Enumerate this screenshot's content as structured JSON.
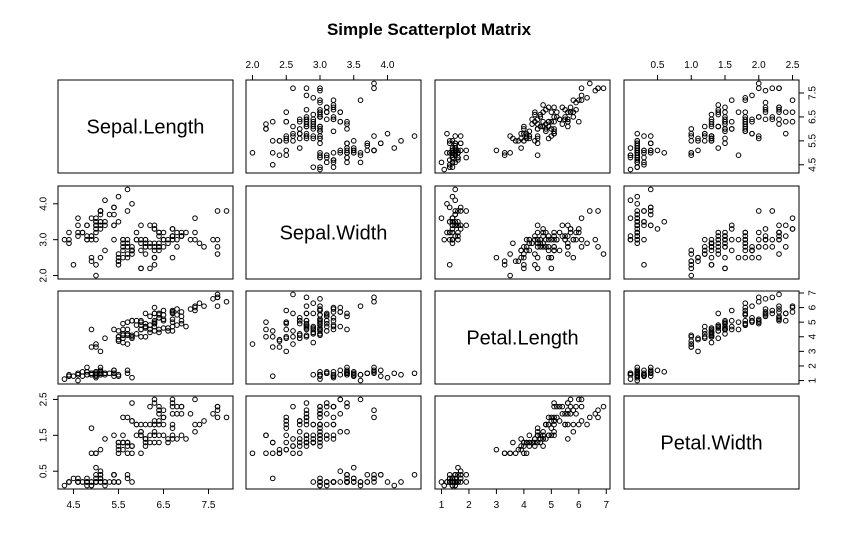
{
  "chart_data": {
    "type": "scatter",
    "subtype": "scatterplot-matrix",
    "title": "Simple Scatterplot Matrix",
    "variables": [
      "Sepal.Length",
      "Sepal.Width",
      "Petal.Length",
      "Petal.Width"
    ],
    "ranges": {
      "Sepal.Length": [
        4.3,
        7.9
      ],
      "Sepal.Width": [
        2.0,
        4.4
      ],
      "Petal.Length": [
        1.0,
        6.9
      ],
      "Petal.Width": [
        0.1,
        2.5
      ]
    },
    "ticks": {
      "Sepal.Length": {
        "values": [
          4.5,
          5.5,
          6.5,
          7.5
        ],
        "labels": [
          "4.5",
          "5.5",
          "6.5",
          "7.5"
        ]
      },
      "Sepal.Width": {
        "values": [
          2.0,
          2.5,
          3.0,
          3.5,
          4.0
        ],
        "labels": [
          "2.0",
          "2.5",
          "3.0",
          "3.5",
          "4.0"
        ]
      },
      "Sepal.Width.left": {
        "values": [
          2.0,
          3.0,
          4.0
        ],
        "labels": [
          "2.0",
          "3.0",
          "4.0"
        ]
      },
      "Petal.Length": {
        "values": [
          1,
          2,
          3,
          4,
          5,
          6,
          7
        ],
        "labels": [
          "1",
          "2",
          "3",
          "4",
          "5",
          "6",
          "7"
        ]
      },
      "Petal.Width": {
        "values": [
          0.5,
          1.0,
          1.5,
          2.0,
          2.5
        ],
        "labels": [
          "0.5",
          "1.0",
          "1.5",
          "2.0",
          "2.5"
        ]
      },
      "Petal.Width.left": {
        "values": [
          0.5,
          1.5,
          2.5
        ],
        "labels": [
          "0.5",
          "1.5",
          "2.5"
        ]
      }
    },
    "observations": [
      [
        5.1,
        3.5,
        1.4,
        0.2
      ],
      [
        4.9,
        3.0,
        1.4,
        0.2
      ],
      [
        4.7,
        3.2,
        1.3,
        0.2
      ],
      [
        4.6,
        3.1,
        1.5,
        0.2
      ],
      [
        5.0,
        3.6,
        1.4,
        0.2
      ],
      [
        5.4,
        3.9,
        1.7,
        0.4
      ],
      [
        4.6,
        3.4,
        1.4,
        0.3
      ],
      [
        5.0,
        3.4,
        1.5,
        0.2
      ],
      [
        4.4,
        2.9,
        1.4,
        0.2
      ],
      [
        4.9,
        3.1,
        1.5,
        0.1
      ],
      [
        5.4,
        3.7,
        1.5,
        0.2
      ],
      [
        4.8,
        3.4,
        1.6,
        0.2
      ],
      [
        4.8,
        3.0,
        1.4,
        0.1
      ],
      [
        4.3,
        3.0,
        1.1,
        0.1
      ],
      [
        5.8,
        4.0,
        1.2,
        0.2
      ],
      [
        5.7,
        4.4,
        1.5,
        0.4
      ],
      [
        5.4,
        3.9,
        1.3,
        0.4
      ],
      [
        5.1,
        3.5,
        1.4,
        0.3
      ],
      [
        5.7,
        3.8,
        1.7,
        0.3
      ],
      [
        5.1,
        3.8,
        1.5,
        0.3
      ],
      [
        5.4,
        3.4,
        1.7,
        0.2
      ],
      [
        5.1,
        3.7,
        1.5,
        0.4
      ],
      [
        4.6,
        3.6,
        1.0,
        0.2
      ],
      [
        5.1,
        3.3,
        1.7,
        0.5
      ],
      [
        4.8,
        3.4,
        1.9,
        0.2
      ],
      [
        5.0,
        3.0,
        1.6,
        0.2
      ],
      [
        5.0,
        3.4,
        1.6,
        0.4
      ],
      [
        5.2,
        3.5,
        1.5,
        0.2
      ],
      [
        5.2,
        3.4,
        1.4,
        0.2
      ],
      [
        4.7,
        3.2,
        1.6,
        0.2
      ],
      [
        4.8,
        3.1,
        1.6,
        0.2
      ],
      [
        5.4,
        3.4,
        1.5,
        0.4
      ],
      [
        5.2,
        4.1,
        1.5,
        0.1
      ],
      [
        5.5,
        4.2,
        1.4,
        0.2
      ],
      [
        4.9,
        3.1,
        1.5,
        0.2
      ],
      [
        5.0,
        3.2,
        1.2,
        0.2
      ],
      [
        5.5,
        3.5,
        1.3,
        0.2
      ],
      [
        4.9,
        3.6,
        1.4,
        0.1
      ],
      [
        4.4,
        3.0,
        1.3,
        0.2
      ],
      [
        5.1,
        3.4,
        1.5,
        0.2
      ],
      [
        5.0,
        3.5,
        1.3,
        0.3
      ],
      [
        4.5,
        2.3,
        1.3,
        0.3
      ],
      [
        4.4,
        3.2,
        1.3,
        0.2
      ],
      [
        5.0,
        3.5,
        1.6,
        0.6
      ],
      [
        5.1,
        3.8,
        1.9,
        0.4
      ],
      [
        4.8,
        3.0,
        1.4,
        0.3
      ],
      [
        5.1,
        3.8,
        1.6,
        0.2
      ],
      [
        4.6,
        3.2,
        1.4,
        0.2
      ],
      [
        5.3,
        3.7,
        1.5,
        0.2
      ],
      [
        5.0,
        3.3,
        1.4,
        0.2
      ],
      [
        7.0,
        3.2,
        4.7,
        1.4
      ],
      [
        6.4,
        3.2,
        4.5,
        1.5
      ],
      [
        6.9,
        3.1,
        4.9,
        1.5
      ],
      [
        5.5,
        2.3,
        4.0,
        1.3
      ],
      [
        6.5,
        2.8,
        4.6,
        1.5
      ],
      [
        5.7,
        2.8,
        4.5,
        1.3
      ],
      [
        6.3,
        3.3,
        4.7,
        1.6
      ],
      [
        4.9,
        2.4,
        3.3,
        1.0
      ],
      [
        6.6,
        2.9,
        4.6,
        1.3
      ],
      [
        5.2,
        2.7,
        3.9,
        1.4
      ],
      [
        5.0,
        2.0,
        3.5,
        1.0
      ],
      [
        5.9,
        3.0,
        4.2,
        1.5
      ],
      [
        6.0,
        2.2,
        4.0,
        1.0
      ],
      [
        6.1,
        2.9,
        4.7,
        1.4
      ],
      [
        5.6,
        2.9,
        3.6,
        1.3
      ],
      [
        6.7,
        3.1,
        4.4,
        1.4
      ],
      [
        5.6,
        3.0,
        4.5,
        1.5
      ],
      [
        5.8,
        2.7,
        4.1,
        1.0
      ],
      [
        6.2,
        2.2,
        4.5,
        1.5
      ],
      [
        5.6,
        2.5,
        3.9,
        1.1
      ],
      [
        5.9,
        3.2,
        4.8,
        1.8
      ],
      [
        6.1,
        2.8,
        4.0,
        1.3
      ],
      [
        6.3,
        2.5,
        4.9,
        1.5
      ],
      [
        6.1,
        2.8,
        4.7,
        1.2
      ],
      [
        6.4,
        2.9,
        4.3,
        1.3
      ],
      [
        6.6,
        3.0,
        4.4,
        1.4
      ],
      [
        6.8,
        2.8,
        4.8,
        1.4
      ],
      [
        6.7,
        3.0,
        5.0,
        1.7
      ],
      [
        6.0,
        2.9,
        4.5,
        1.5
      ],
      [
        5.7,
        2.6,
        3.5,
        1.0
      ],
      [
        5.5,
        2.4,
        3.8,
        1.1
      ],
      [
        5.5,
        2.4,
        3.7,
        1.0
      ],
      [
        5.8,
        2.7,
        3.9,
        1.2
      ],
      [
        6.0,
        2.7,
        5.1,
        1.6
      ],
      [
        5.4,
        3.0,
        4.5,
        1.5
      ],
      [
        6.0,
        3.4,
        4.5,
        1.6
      ],
      [
        6.7,
        3.1,
        4.7,
        1.5
      ],
      [
        6.3,
        2.3,
        4.4,
        1.3
      ],
      [
        5.6,
        3.0,
        4.1,
        1.3
      ],
      [
        5.5,
        2.5,
        4.0,
        1.3
      ],
      [
        5.5,
        2.6,
        4.4,
        1.2
      ],
      [
        6.1,
        3.0,
        4.6,
        1.4
      ],
      [
        5.8,
        2.6,
        4.0,
        1.2
      ],
      [
        5.0,
        2.3,
        3.3,
        1.0
      ],
      [
        5.6,
        2.7,
        4.2,
        1.3
      ],
      [
        5.7,
        3.0,
        4.2,
        1.2
      ],
      [
        5.7,
        2.9,
        4.2,
        1.3
      ],
      [
        6.2,
        2.9,
        4.3,
        1.3
      ],
      [
        5.1,
        2.5,
        3.0,
        1.1
      ],
      [
        5.7,
        2.8,
        4.1,
        1.3
      ],
      [
        6.3,
        3.3,
        6.0,
        2.5
      ],
      [
        5.8,
        2.7,
        5.1,
        1.9
      ],
      [
        7.1,
        3.0,
        5.9,
        2.1
      ],
      [
        6.3,
        2.9,
        5.6,
        1.8
      ],
      [
        6.5,
        3.0,
        5.8,
        2.2
      ],
      [
        7.6,
        3.0,
        6.6,
        2.1
      ],
      [
        4.9,
        2.5,
        4.5,
        1.7
      ],
      [
        7.3,
        2.9,
        6.3,
        1.8
      ],
      [
        6.7,
        2.5,
        5.8,
        1.8
      ],
      [
        7.2,
        3.6,
        6.1,
        2.5
      ],
      [
        6.5,
        3.2,
        5.1,
        2.0
      ],
      [
        6.4,
        2.7,
        5.3,
        1.9
      ],
      [
        6.8,
        3.0,
        5.5,
        2.1
      ],
      [
        5.7,
        2.5,
        5.0,
        2.0
      ],
      [
        5.8,
        2.8,
        5.1,
        2.4
      ],
      [
        6.4,
        3.2,
        5.3,
        2.3
      ],
      [
        6.5,
        3.0,
        5.5,
        1.8
      ],
      [
        7.7,
        3.8,
        6.7,
        2.2
      ],
      [
        7.7,
        2.6,
        6.9,
        2.3
      ],
      [
        6.0,
        2.2,
        5.0,
        1.5
      ],
      [
        6.9,
        3.2,
        5.7,
        2.3
      ],
      [
        5.6,
        2.8,
        4.9,
        2.0
      ],
      [
        7.7,
        2.8,
        6.7,
        2.0
      ],
      [
        6.3,
        2.7,
        4.9,
        1.8
      ],
      [
        6.7,
        3.3,
        5.7,
        2.1
      ],
      [
        7.2,
        3.2,
        6.0,
        1.8
      ],
      [
        6.2,
        2.8,
        4.8,
        1.8
      ],
      [
        6.1,
        3.0,
        4.9,
        1.8
      ],
      [
        6.4,
        2.8,
        5.6,
        2.1
      ],
      [
        7.2,
        3.0,
        5.8,
        1.6
      ],
      [
        7.4,
        2.8,
        6.1,
        1.9
      ],
      [
        7.9,
        3.8,
        6.4,
        2.0
      ],
      [
        6.4,
        2.8,
        5.6,
        2.2
      ],
      [
        6.3,
        2.8,
        5.1,
        1.5
      ],
      [
        6.1,
        2.6,
        5.6,
        1.4
      ],
      [
        7.7,
        3.0,
        6.1,
        2.3
      ],
      [
        6.3,
        3.4,
        5.6,
        2.4
      ],
      [
        6.4,
        3.1,
        5.5,
        1.8
      ],
      [
        6.0,
        3.0,
        4.8,
        1.8
      ],
      [
        6.9,
        3.1,
        5.4,
        2.1
      ],
      [
        6.7,
        3.1,
        5.6,
        2.4
      ],
      [
        6.9,
        3.1,
        5.1,
        2.3
      ],
      [
        5.8,
        2.7,
        5.1,
        1.9
      ],
      [
        6.8,
        3.2,
        5.9,
        2.3
      ],
      [
        6.7,
        3.3,
        5.7,
        2.5
      ],
      [
        6.7,
        3.0,
        5.2,
        2.3
      ],
      [
        6.3,
        2.5,
        5.0,
        1.9
      ],
      [
        6.5,
        3.0,
        5.2,
        2.0
      ],
      [
        6.2,
        3.4,
        5.4,
        2.3
      ],
      [
        5.9,
        3.0,
        5.1,
        1.8
      ]
    ]
  }
}
